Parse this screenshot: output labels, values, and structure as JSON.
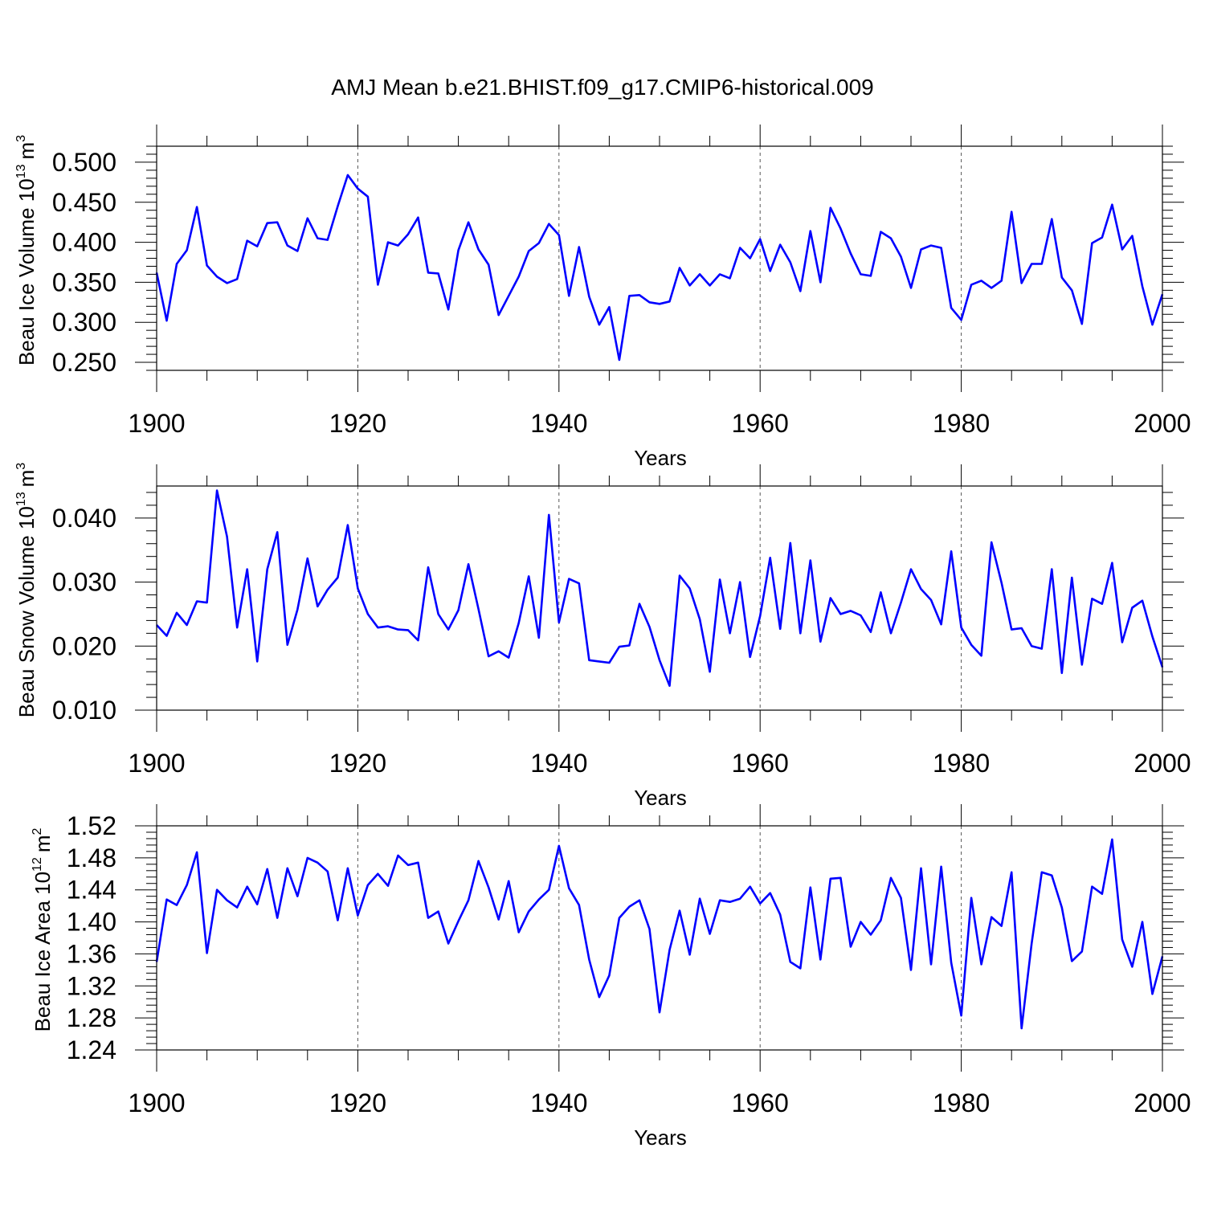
{
  "chart_data": {
    "type": "line",
    "title": "AMJ Mean b.e21.BHIST.f09_g17.CMIP6-historical.009",
    "panels": [
      {
        "name": "ice-volume",
        "ylabel": "Beau Ice Volume 10",
        "ylabel_sup": "13",
        "ylabel_unit": "m",
        "ylabel_unit_sup": "3",
        "xlabel": "Years",
        "xlim": [
          1900,
          2000
        ],
        "ylim": [
          0.24,
          0.52
        ],
        "yticks": [
          "0.250",
          "0.300",
          "0.350",
          "0.400",
          "0.450",
          "0.500"
        ],
        "xticks": [
          "1900",
          "1920",
          "1940",
          "1960",
          "1980",
          "2000"
        ],
        "x_start": 1900,
        "values": [
          0.362,
          0.302,
          0.373,
          0.39,
          0.444,
          0.371,
          0.357,
          0.349,
          0.354,
          0.402,
          0.395,
          0.424,
          0.425,
          0.396,
          0.389,
          0.43,
          0.405,
          0.403,
          0.445,
          0.484,
          0.467,
          0.457,
          0.347,
          0.4,
          0.396,
          0.41,
          0.431,
          0.362,
          0.361,
          0.316,
          0.39,
          0.425,
          0.391,
          0.372,
          0.309,
          0.333,
          0.357,
          0.389,
          0.399,
          0.423,
          0.409,
          0.333,
          0.394,
          0.332,
          0.297,
          0.319,
          0.253,
          0.333,
          0.334,
          0.325,
          0.323,
          0.326,
          0.368,
          0.346,
          0.36,
          0.346,
          0.36,
          0.355,
          0.393,
          0.38,
          0.404,
          0.364,
          0.397,
          0.375,
          0.339,
          0.414,
          0.35,
          0.443,
          0.417,
          0.386,
          0.36,
          0.358,
          0.413,
          0.405,
          0.382,
          0.343,
          0.391,
          0.396,
          0.393,
          0.318,
          0.303,
          0.347,
          0.352,
          0.343,
          0.352,
          0.438,
          0.349,
          0.373,
          0.373,
          0.429,
          0.356,
          0.34,
          0.298,
          0.399,
          0.406,
          0.447,
          0.391,
          0.408,
          0.345,
          0.297,
          0.335
        ]
      },
      {
        "name": "snow-volume",
        "ylabel": "Beau Snow Volume 10",
        "ylabel_sup": "13",
        "ylabel_unit": "m",
        "ylabel_unit_sup": "3",
        "xlabel": "Years",
        "xlim": [
          1900,
          2000
        ],
        "ylim": [
          0.01,
          0.045
        ],
        "yticks": [
          "0.010",
          "0.020",
          "0.030",
          "0.040"
        ],
        "xticks": [
          "1900",
          "1920",
          "1940",
          "1960",
          "1980",
          "2000"
        ],
        "x_start": 1900,
        "values": [
          0.0233,
          0.0216,
          0.0252,
          0.0233,
          0.027,
          0.0268,
          0.0443,
          0.0371,
          0.0229,
          0.032,
          0.0176,
          0.032,
          0.0378,
          0.0202,
          0.0257,
          0.0337,
          0.0262,
          0.0288,
          0.0307,
          0.0389,
          0.029,
          0.025,
          0.0229,
          0.0231,
          0.0226,
          0.0225,
          0.0209,
          0.0323,
          0.025,
          0.0226,
          0.0256,
          0.0328,
          0.0258,
          0.0184,
          0.0192,
          0.0182,
          0.0236,
          0.0309,
          0.0213,
          0.0405,
          0.0237,
          0.0305,
          0.0298,
          0.0178,
          0.0176,
          0.0174,
          0.0199,
          0.0201,
          0.0266,
          0.023,
          0.0178,
          0.0138,
          0.031,
          0.029,
          0.0242,
          0.016,
          0.0304,
          0.022,
          0.03,
          0.0183,
          0.0247,
          0.0338,
          0.0227,
          0.0361,
          0.022,
          0.0334,
          0.0207,
          0.0275,
          0.025,
          0.0255,
          0.0248,
          0.0222,
          0.0284,
          0.022,
          0.0268,
          0.032,
          0.0289,
          0.0272,
          0.0234,
          0.0348,
          0.0229,
          0.0202,
          0.0185,
          0.0362,
          0.0299,
          0.0226,
          0.0228,
          0.02,
          0.0196,
          0.032,
          0.0158,
          0.0307,
          0.0171,
          0.0274,
          0.0266,
          0.033,
          0.0206,
          0.026,
          0.0271,
          0.0215,
          0.0167
        ]
      },
      {
        "name": "ice-area",
        "ylabel": "Beau Ice Area 10",
        "ylabel_sup": "12",
        "ylabel_unit": "m",
        "ylabel_unit_sup": "2",
        "xlabel": "Years",
        "xlim": [
          1900,
          2000
        ],
        "ylim": [
          1.24,
          1.52
        ],
        "yticks": [
          "1.24",
          "1.28",
          "1.32",
          "1.36",
          "1.40",
          "1.44",
          "1.48",
          "1.52"
        ],
        "xticks": [
          "1900",
          "1920",
          "1940",
          "1960",
          "1980",
          "2000"
        ],
        "x_start": 1900,
        "values": [
          1.35,
          1.428,
          1.421,
          1.446,
          1.487,
          1.361,
          1.44,
          1.427,
          1.418,
          1.444,
          1.422,
          1.466,
          1.405,
          1.467,
          1.432,
          1.48,
          1.474,
          1.463,
          1.402,
          1.467,
          1.408,
          1.446,
          1.46,
          1.445,
          1.483,
          1.471,
          1.474,
          1.405,
          1.413,
          1.373,
          1.401,
          1.427,
          1.476,
          1.443,
          1.403,
          1.451,
          1.387,
          1.413,
          1.428,
          1.44,
          1.495,
          1.442,
          1.421,
          1.353,
          1.306,
          1.333,
          1.405,
          1.419,
          1.427,
          1.391,
          1.287,
          1.365,
          1.414,
          1.359,
          1.429,
          1.385,
          1.427,
          1.425,
          1.429,
          1.444,
          1.423,
          1.436,
          1.409,
          1.35,
          1.342,
          1.443,
          1.353,
          1.454,
          1.455,
          1.369,
          1.4,
          1.384,
          1.402,
          1.455,
          1.43,
          1.34,
          1.467,
          1.347,
          1.469,
          1.349,
          1.283,
          1.43,
          1.347,
          1.406,
          1.395,
          1.462,
          1.267,
          1.373,
          1.462,
          1.458,
          1.418,
          1.351,
          1.363,
          1.444,
          1.435,
          1.503,
          1.378,
          1.344,
          1.4,
          1.31,
          1.357
        ]
      }
    ]
  }
}
